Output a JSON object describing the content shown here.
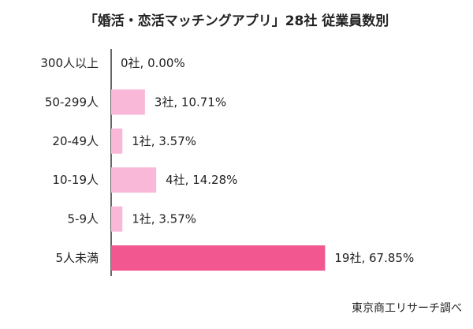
{
  "chart_data": {
    "type": "bar",
    "orientation": "horizontal",
    "title": "「婚活・恋活マッチングアプリ」28社 従業員数別",
    "categories": [
      "300人以上",
      "50-299人",
      "20-49人",
      "10-19人",
      "5-9人",
      "5人未満"
    ],
    "values": [
      0.0,
      10.71,
      3.57,
      14.28,
      3.57,
      67.85
    ],
    "counts": [
      0,
      3,
      1,
      4,
      1,
      19
    ],
    "data_labels": [
      "0社, 0.00%",
      "3社, 10.71%",
      "1社, 3.57%",
      "4社, 14.28%",
      "1社, 3.57%",
      "19社, 67.85%"
    ],
    "bar_colors": [
      "#f9b8d8",
      "#f9b8d8",
      "#f9b8d8",
      "#f9b8d8",
      "#f9b8d8",
      "#f2578f"
    ],
    "xlim": [
      0,
      100
    ],
    "grid": false,
    "source": "東京商工リサーチ調べ"
  }
}
